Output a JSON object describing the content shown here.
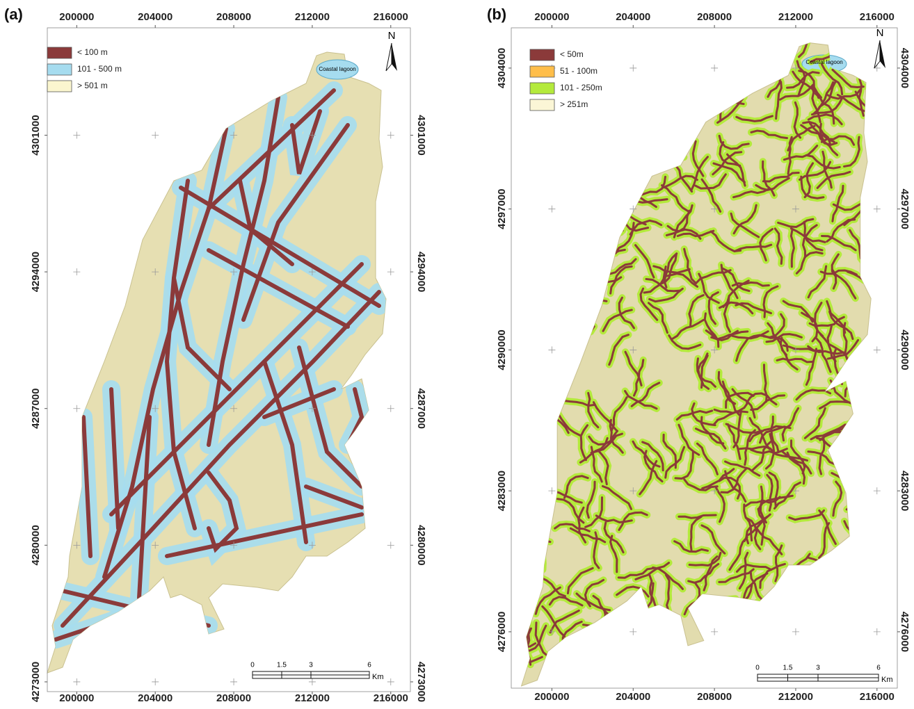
{
  "panels": [
    {
      "label": "(a)",
      "xlim": [
        198500,
        217000
      ],
      "ylim": [
        4272500,
        4306500
      ],
      "xticks": [
        200000,
        204000,
        208000,
        212000,
        216000
      ],
      "yticks": [
        4273000,
        4280000,
        4287000,
        4294000,
        4301000
      ],
      "legend": [
        {
          "name": "< 100 m",
          "color": "#8b3a3a"
        },
        {
          "name": "101 - 500 m",
          "color": "#a6dcef"
        },
        {
          "name": "> 501 m",
          "color": "#fbf6cf"
        }
      ],
      "north": "N",
      "lagoon": "Coastal lagoon",
      "scale_bar": {
        "ticks": [
          0,
          1.5,
          3,
          6
        ],
        "unit": "Km"
      }
    },
    {
      "label": "(b)",
      "xlim": [
        198000,
        217000
      ],
      "ylim": [
        4273200,
        4306000
      ],
      "xticks": [
        200000,
        204000,
        208000,
        212000,
        216000
      ],
      "yticks": [
        4276000,
        4283000,
        4290000,
        4297000,
        4304000
      ],
      "legend": [
        {
          "name": "< 50m",
          "color": "#8b3a3a"
        },
        {
          "name": "51 - 100m",
          "color": "#ffbe4a"
        },
        {
          "name": "101 - 250m",
          "color": "#b4ea3c"
        },
        {
          "name": "> 251m",
          "color": "#fbf6d6"
        }
      ],
      "north": "N",
      "lagoon": "Coastal lagoon",
      "scale_bar": {
        "ticks": [
          0,
          1.5,
          3,
          6
        ],
        "unit": "Km"
      }
    }
  ]
}
